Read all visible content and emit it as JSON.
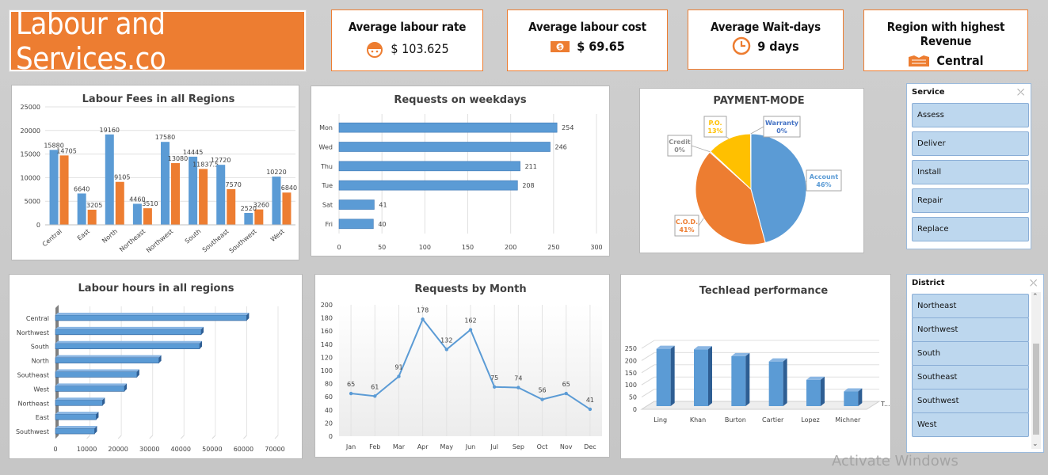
{
  "app": {
    "title": "Labour and Services.co"
  },
  "kpis": {
    "labour_rate": {
      "title": "Average labour rate",
      "value": "$ 103.625",
      "icon": "worker-helmet-icon"
    },
    "labour_cost": {
      "title": "Average labour cost",
      "value": "$ 69.65",
      "icon": "cash-icon"
    },
    "wait_days": {
      "title": "Average Wait-days",
      "value": "9 days",
      "icon": "clock-icon"
    },
    "top_region": {
      "title": "Region with highest Revenue",
      "value": "Central",
      "icon": "map-region-icon"
    }
  },
  "colors": {
    "accent": "#ed7d31",
    "blue": "#5b9bd5",
    "gold": "#ffc000",
    "slicer": "#bdd7ee"
  },
  "charts": {
    "fees": {
      "title": "Labour Fees in all Regions",
      "categories": [
        "Central",
        "East",
        "North",
        "Northeast",
        "Northwest",
        "South",
        "Southeast",
        "Southwest",
        "West"
      ],
      "series_a": [
        15880,
        6640,
        19160,
        4460,
        17580,
        14445,
        12720,
        2520,
        10220
      ],
      "series_b": [
        14705,
        3205,
        9105,
        3510,
        13080,
        11837.5,
        7570,
        3260,
        6840
      ],
      "labels_a": [
        "15880",
        "6640",
        "19160",
        "4460",
        "17580",
        "14445",
        "12720",
        "2520",
        "10220"
      ],
      "labels_b": [
        "14705",
        "3205",
        "9105",
        "3510",
        "13080",
        "11837.5",
        "7570",
        "3260",
        "6840"
      ],
      "yticks": [
        "0",
        "5000",
        "10000",
        "15000",
        "20000",
        "25000"
      ],
      "ymax": 25000
    },
    "weekdays": {
      "title": "Requests on weekdays",
      "categories": [
        "Mon",
        "Wed",
        "Thu",
        "Tue",
        "Sat",
        "Fri"
      ],
      "values": [
        254,
        246,
        211,
        208,
        41,
        40
      ],
      "labels": [
        "254",
        "246",
        "211",
        "208",
        "41",
        "40"
      ],
      "xticks": [
        "0",
        "50",
        "100",
        "150",
        "200",
        "250",
        "300"
      ],
      "xmax": 300
    },
    "payment": {
      "title": "PAYMENT-MODE",
      "slices": [
        {
          "name": "Account",
          "pct": "46%",
          "value": 46,
          "color": "#5b9bd5"
        },
        {
          "name": "C.O.D.",
          "pct": "41%",
          "value": 41,
          "color": "#ed7d31"
        },
        {
          "name": "Credit",
          "pct": "0%",
          "value": 0.3,
          "color": "#a5a5a5"
        },
        {
          "name": "P.O.",
          "pct": "13%",
          "value": 13,
          "color": "#ffc000"
        },
        {
          "name": "Warranty",
          "pct": "0%",
          "value": 0.1,
          "color": "#4472c4"
        }
      ]
    },
    "hours": {
      "title": "Labour hours in all regions",
      "categories": [
        "Central",
        "Northwest",
        "South",
        "North",
        "Southeast",
        "West",
        "Northeast",
        "East",
        "Southwest"
      ],
      "values": [
        61000,
        46500,
        46000,
        33000,
        26000,
        22000,
        15000,
        13000,
        12500
      ],
      "xticks": [
        "0",
        "10000",
        "20000",
        "30000",
        "40000",
        "50000",
        "60000",
        "70000"
      ],
      "xmax": 70000
    },
    "months": {
      "title": "Requests by Month",
      "categories": [
        "Jan",
        "Feb",
        "Mar",
        "Apr",
        "May",
        "Jun",
        "Jul",
        "Sep",
        "Oct",
        "Nov",
        "Dec"
      ],
      "values": [
        65,
        61,
        91,
        178,
        132,
        162,
        75,
        74,
        56,
        65,
        41
      ],
      "labels": [
        "65",
        "61",
        "91",
        "178",
        "132",
        "162",
        "75",
        "74",
        "56",
        "65",
        "41"
      ],
      "yticks": [
        "0",
        "20",
        "40",
        "60",
        "80",
        "100",
        "120",
        "140",
        "160",
        "180",
        "200"
      ],
      "ymax": 200
    },
    "techlead": {
      "title": "Techlead performance",
      "categories": [
        "Ling",
        "Khan",
        "Burton",
        "Cartier",
        "Lopez",
        "Michner"
      ],
      "values": [
        235,
        233,
        205,
        183,
        108,
        60
      ],
      "yticks": [
        "0",
        "50",
        "100",
        "150",
        "200",
        "250"
      ],
      "ymax": 250,
      "legend_stub": "T..."
    }
  },
  "chart_data": [
    {
      "type": "bar",
      "title": "Labour Fees in all Regions",
      "categories": [
        "Central",
        "East",
        "North",
        "Northeast",
        "Northwest",
        "South",
        "Southeast",
        "Southwest",
        "West"
      ],
      "series": [
        {
          "values": [
            15880,
            6640,
            19160,
            4460,
            17580,
            14445,
            12720,
            2520,
            10220
          ]
        },
        {
          "values": [
            14705,
            3205,
            9105,
            3510,
            13080,
            11837.5,
            7570,
            3260,
            6840
          ]
        }
      ],
      "ylim": [
        0,
        25000
      ]
    },
    {
      "type": "bar",
      "title": "Requests on weekdays",
      "orientation": "horizontal",
      "categories": [
        "Mon",
        "Wed",
        "Thu",
        "Tue",
        "Sat",
        "Fri"
      ],
      "values": [
        254,
        246,
        211,
        208,
        41,
        40
      ],
      "xlim": [
        0,
        300
      ]
    },
    {
      "type": "pie",
      "title": "PAYMENT-MODE",
      "categories": [
        "Account",
        "C.O.D.",
        "Credit",
        "P.O.",
        "Warranty"
      ],
      "values": [
        46,
        41,
        0,
        13,
        0
      ]
    },
    {
      "type": "bar",
      "title": "Labour hours in all regions",
      "orientation": "horizontal",
      "categories": [
        "Central",
        "Northwest",
        "South",
        "North",
        "Southeast",
        "West",
        "Northeast",
        "East",
        "Southwest"
      ],
      "values": [
        61000,
        46500,
        46000,
        33000,
        26000,
        22000,
        15000,
        13000,
        12500
      ],
      "xlim": [
        0,
        70000
      ]
    },
    {
      "type": "line",
      "title": "Requests by Month",
      "categories": [
        "Jan",
        "Feb",
        "Mar",
        "Apr",
        "May",
        "Jun",
        "Jul",
        "Sep",
        "Oct",
        "Nov",
        "Dec"
      ],
      "values": [
        65,
        61,
        91,
        178,
        132,
        162,
        75,
        74,
        56,
        65,
        41
      ],
      "ylim": [
        0,
        200
      ]
    },
    {
      "type": "bar",
      "title": "Techlead performance",
      "categories": [
        "Ling",
        "Khan",
        "Burton",
        "Cartier",
        "Lopez",
        "Michner"
      ],
      "values": [
        235,
        233,
        205,
        183,
        108,
        60
      ],
      "ylim": [
        0,
        250
      ]
    }
  ],
  "slicers": {
    "service": {
      "title": "Service",
      "items": [
        "Assess",
        "Deliver",
        "Install",
        "Repair",
        "Replace"
      ]
    },
    "district": {
      "title": "District",
      "items": [
        "Northeast",
        "Northwest",
        "South",
        "Southeast",
        "Southwest",
        "West"
      ]
    }
  },
  "watermark": "Activate Windows"
}
